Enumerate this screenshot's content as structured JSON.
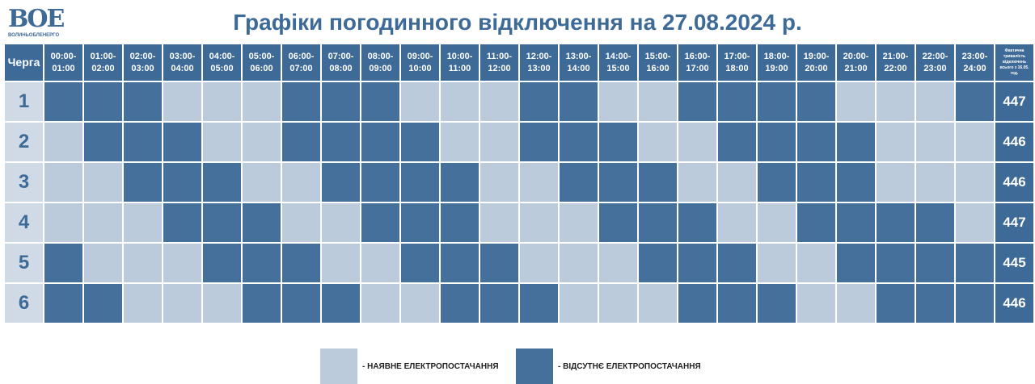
{
  "logo": {
    "mark": "ВОЕ",
    "caption": "ВОЛИНЬОБЛЕНЕРГО"
  },
  "title": "Графіки погодинного відключення на 27.08.2024 р.",
  "colors": {
    "available": "#bccbdb",
    "absent": "#46709c",
    "header": "#3e6a97"
  },
  "table": {
    "queue_header": "Черга",
    "total_header": "Фактична тривалість відключень всього з 16.05. год.",
    "hours": [
      "00:00-01:00",
      "01:00-02:00",
      "02:00-03:00",
      "03:00-04:00",
      "04:00-05:00",
      "05:00-06:00",
      "06:00-07:00",
      "07:00-08:00",
      "08:00-09:00",
      "09:00-10:00",
      "10:00-11:00",
      "11:00-12:00",
      "12:00-13:00",
      "13:00-14:00",
      "14:00-15:00",
      "15:00-16:00",
      "16:00-17:00",
      "17:00-18:00",
      "18:00-19:00",
      "19:00-20:00",
      "20:00-21:00",
      "21:00-22:00",
      "22:00-23:00",
      "23:00-24:00"
    ],
    "rows": [
      {
        "queue": "1",
        "total": "447",
        "states": [
          0,
          0,
          0,
          1,
          1,
          1,
          0,
          0,
          0,
          1,
          1,
          1,
          0,
          0,
          1,
          1,
          0,
          0,
          0,
          0,
          1,
          1,
          1,
          0
        ]
      },
      {
        "queue": "2",
        "total": "446",
        "states": [
          1,
          0,
          0,
          0,
          1,
          1,
          0,
          0,
          0,
          0,
          1,
          1,
          0,
          0,
          0,
          1,
          1,
          0,
          0,
          0,
          0,
          1,
          1,
          1
        ]
      },
      {
        "queue": "3",
        "total": "446",
        "states": [
          1,
          1,
          0,
          0,
          0,
          1,
          1,
          0,
          0,
          0,
          0,
          1,
          1,
          0,
          0,
          0,
          1,
          1,
          0,
          0,
          0,
          1,
          1,
          1
        ]
      },
      {
        "queue": "4",
        "total": "447",
        "states": [
          1,
          1,
          1,
          0,
          0,
          0,
          1,
          1,
          0,
          0,
          0,
          1,
          1,
          1,
          0,
          0,
          0,
          1,
          1,
          0,
          0,
          0,
          0,
          1
        ]
      },
      {
        "queue": "5",
        "total": "445",
        "states": [
          0,
          1,
          1,
          1,
          0,
          0,
          0,
          1,
          1,
          0,
          0,
          0,
          1,
          1,
          1,
          0,
          0,
          0,
          1,
          1,
          0,
          0,
          0,
          0
        ]
      },
      {
        "queue": "6",
        "total": "446",
        "states": [
          0,
          0,
          1,
          1,
          1,
          0,
          0,
          0,
          1,
          1,
          0,
          0,
          0,
          1,
          1,
          1,
          0,
          0,
          0,
          1,
          1,
          0,
          0,
          0
        ]
      }
    ]
  },
  "legend": {
    "available": "- НАЯВНЕ ЕЛЕКТРОПОСТАЧАННЯ",
    "absent": "- ВІДСУТНЄ ЕЛЕКТРОПОСТАЧАННЯ"
  }
}
